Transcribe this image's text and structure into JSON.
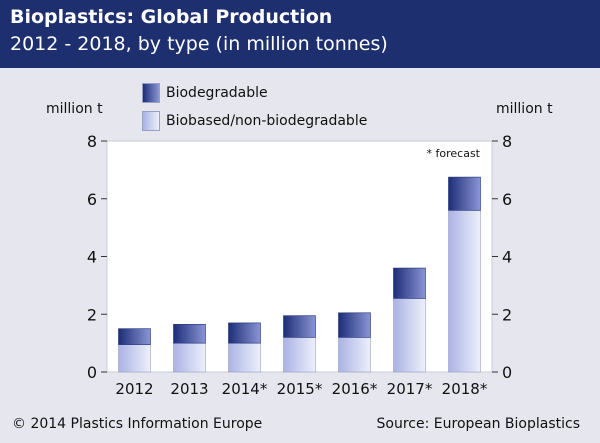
{
  "header": {
    "title": "Bioplastics: Global Production",
    "subtitle": "2012 - 2018, by type (in million tonnes)"
  },
  "axis": {
    "unit_left": "million t",
    "unit_right": "million t"
  },
  "note": "* forecast",
  "footer": {
    "copyright": "© 2014 Plastics Information Europe",
    "source": "Source: European Bioplastics"
  },
  "colors": {
    "biodegradable_dark": "#1d2e78",
    "biodegradable_light": "#8a95d4",
    "nonbio_dark": "#aab3e4",
    "nonbio_light": "#eef0fb",
    "header_bg": "#1d2f6f"
  },
  "chart_data": {
    "type": "bar",
    "stacked": true,
    "title": "Bioplastics: Global Production",
    "subtitle": "2012 - 2018, by type (in million tonnes)",
    "ylabel": "million t",
    "ylim": [
      0,
      8
    ],
    "yticks": [
      0,
      2,
      4,
      6,
      8
    ],
    "grid": false,
    "legend_position": "top-left",
    "categories": [
      "2012",
      "2013",
      "2014*",
      "2015*",
      "2016*",
      "2017*",
      "2018*"
    ],
    "series": [
      {
        "name": "Biobased/non-biodegradable",
        "values": [
          0.95,
          1.0,
          1.0,
          1.2,
          1.2,
          2.55,
          5.6
        ]
      },
      {
        "name": "Biodegradable",
        "values": [
          0.55,
          0.65,
          0.7,
          0.75,
          0.85,
          1.05,
          1.15
        ]
      }
    ]
  }
}
